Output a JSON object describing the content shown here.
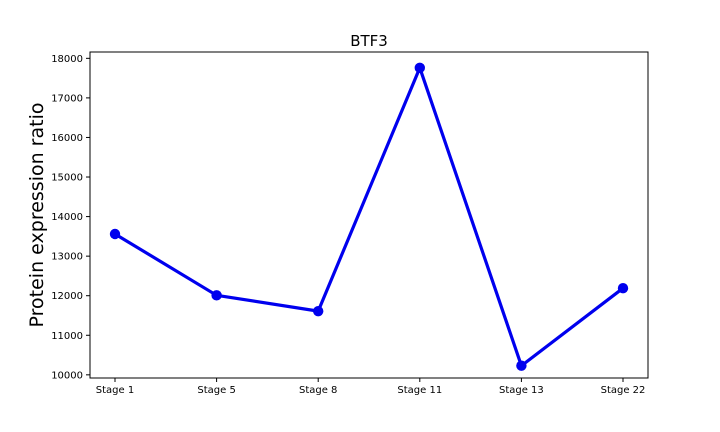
{
  "chart_data": {
    "type": "line",
    "title": "BTF3",
    "xlabel": "",
    "ylabel": "Protein expression ratio",
    "categories": [
      "Stage 1",
      "Stage 5",
      "Stage 8",
      "Stage 11",
      "Stage 13",
      "Stage 22"
    ],
    "series": [
      {
        "values": [
          13560,
          12010,
          11610,
          17760,
          10230,
          12190
        ],
        "color": "#0000ee"
      }
    ],
    "ylim": [
      9920,
      18160
    ],
    "yticks": [
      10000,
      11000,
      12000,
      13000,
      14000,
      15000,
      16000,
      17000,
      18000
    ],
    "grid": false,
    "legend": "none"
  }
}
